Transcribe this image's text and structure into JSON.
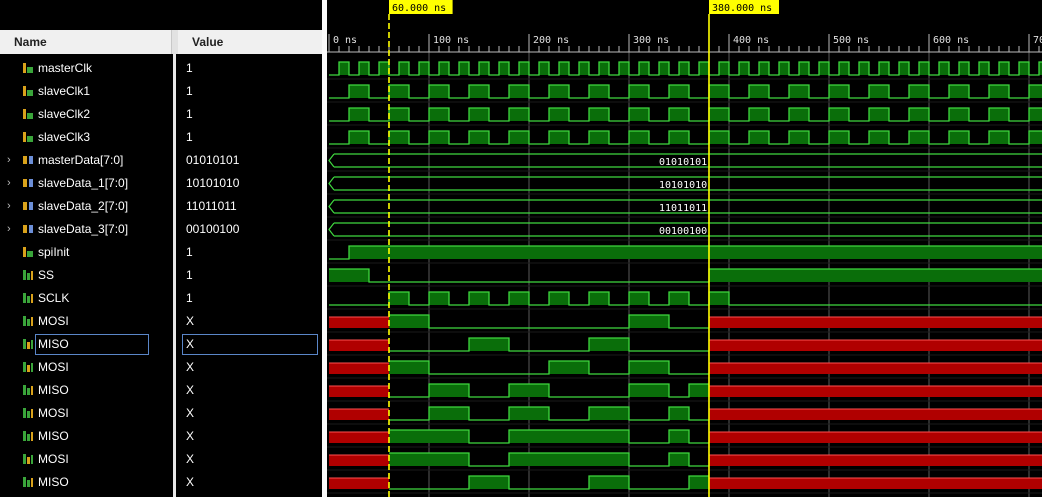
{
  "columns": {
    "name": "Name",
    "value": "Value"
  },
  "signals": [
    {
      "name": "masterClk",
      "value": "1",
      "kind": "bit",
      "icon": "bit-signal-icon",
      "expandable": false,
      "selected": false
    },
    {
      "name": "slaveClk1",
      "value": "1",
      "kind": "bit",
      "icon": "bit-signal-icon",
      "expandable": false,
      "selected": false
    },
    {
      "name": "slaveClk2",
      "value": "1",
      "kind": "bit",
      "icon": "bit-signal-icon",
      "expandable": false,
      "selected": false
    },
    {
      "name": "slaveClk3",
      "value": "1",
      "kind": "bit",
      "icon": "bit-signal-icon",
      "expandable": false,
      "selected": false
    },
    {
      "name": "masterData[7:0]",
      "value": "01010101",
      "kind": "bus",
      "icon": "bus-signal-icon",
      "expandable": true,
      "selected": false
    },
    {
      "name": "slaveData_1[7:0]",
      "value": "10101010",
      "kind": "bus",
      "icon": "bus-signal-icon",
      "expandable": true,
      "selected": false
    },
    {
      "name": "slaveData_2[7:0]",
      "value": "11011011",
      "kind": "bus",
      "icon": "bus-signal-icon",
      "expandable": true,
      "selected": false
    },
    {
      "name": "slaveData_3[7:0]",
      "value": "00100100",
      "kind": "bus",
      "icon": "bus-signal-icon",
      "expandable": true,
      "selected": false
    },
    {
      "name": "spiInit",
      "value": "1",
      "kind": "bit",
      "icon": "bit-signal-icon",
      "expandable": false,
      "selected": false
    },
    {
      "name": "SS",
      "value": "1",
      "kind": "bit",
      "icon": "net-signal-icon",
      "expandable": false,
      "selected": false
    },
    {
      "name": "SCLK",
      "value": "1",
      "kind": "bit",
      "icon": "net-signal-icon",
      "expandable": false,
      "selected": false
    },
    {
      "name": "MOSI",
      "value": "X",
      "kind": "bit",
      "icon": "net-signal-icon",
      "expandable": false,
      "selected": false
    },
    {
      "name": "MISO",
      "value": "X",
      "kind": "bit",
      "icon": "net-out-signal-icon",
      "expandable": false,
      "selected": true
    },
    {
      "name": "MOSI",
      "value": "X",
      "kind": "bit",
      "icon": "net-out-signal-icon",
      "expandable": false,
      "selected": false
    },
    {
      "name": "MISO",
      "value": "X",
      "kind": "bit",
      "icon": "net-signal-icon",
      "expandable": false,
      "selected": false
    },
    {
      "name": "MOSI",
      "value": "X",
      "kind": "bit",
      "icon": "net-signal-icon",
      "expandable": false,
      "selected": false
    },
    {
      "name": "MISO",
      "value": "X",
      "kind": "bit",
      "icon": "net-signal-icon",
      "expandable": false,
      "selected": false
    },
    {
      "name": "MOSI",
      "value": "X",
      "kind": "bit",
      "icon": "net-out-signal-icon",
      "expandable": false,
      "selected": false
    },
    {
      "name": "MISO",
      "value": "X",
      "kind": "bit",
      "icon": "net-signal-icon",
      "expandable": false,
      "selected": false
    }
  ],
  "timeline": {
    "start_ns": 0,
    "end_ns": 700,
    "tick_labels": [
      "0 ns",
      "100 ns",
      "200 ns",
      "300 ns",
      "400 ns",
      "500 ns",
      "600 ns",
      "70"
    ],
    "markers": [
      {
        "label": "60.000 ns",
        "time_ns": 60,
        "style": "dashed"
      },
      {
        "label": "380.000 ns",
        "time_ns": 380,
        "style": "solid"
      }
    ]
  },
  "waveforms": [
    {
      "type": "clock",
      "half_period_ns": 10
    },
    {
      "type": "clock",
      "half_period_ns": 20
    },
    {
      "type": "clock",
      "half_period_ns": 20
    },
    {
      "type": "clock",
      "half_period_ns": 20
    },
    {
      "type": "bus",
      "label": "01010101",
      "change_ns": 0
    },
    {
      "type": "bus",
      "label": "10101010",
      "change_ns": 0
    },
    {
      "type": "bus",
      "label": "11011011",
      "change_ns": 0
    },
    {
      "type": "bus",
      "label": "00100100",
      "change_ns": 0
    },
    {
      "type": "edges",
      "initial": 0,
      "edges_ns": [
        20
      ]
    },
    {
      "type": "edges",
      "initial": 1,
      "edges_ns": [
        40,
        380
      ]
    },
    {
      "type": "edges",
      "initial": 0,
      "edges_ns": [
        60,
        80,
        100,
        120,
        140,
        160,
        180,
        200,
        220,
        240,
        260,
        280,
        300,
        320,
        340,
        360,
        380,
        400
      ]
    },
    {
      "type": "xdata",
      "x_until_ns": 60,
      "edges_ns": [
        60,
        100,
        300,
        340
      ],
      "x_from_ns": 380,
      "initial": 1
    },
    {
      "type": "xdata",
      "x_until_ns": 60,
      "edges_ns": [
        140,
        180,
        260,
        300
      ],
      "x_from_ns": 380,
      "initial": 0
    },
    {
      "type": "xdata",
      "x_until_ns": 60,
      "edges_ns": [
        60,
        100,
        220,
        260,
        300,
        340
      ],
      "x_from_ns": 380,
      "initial": 1
    },
    {
      "type": "xdata",
      "x_until_ns": 60,
      "edges_ns": [
        100,
        140,
        180,
        220,
        300,
        340,
        360
      ],
      "x_from_ns": 380,
      "initial": 0
    },
    {
      "type": "xdata",
      "x_until_ns": 60,
      "edges_ns": [
        100,
        140,
        180,
        220,
        260,
        300,
        340,
        360
      ],
      "x_from_ns": 380,
      "initial": 0
    },
    {
      "type": "xdata",
      "x_until_ns": 60,
      "edges_ns": [
        140,
        180,
        300,
        340,
        360
      ],
      "x_from_ns": 380,
      "initial": 1
    },
    {
      "type": "xdata",
      "x_until_ns": 60,
      "edges_ns": [
        140,
        180,
        300,
        340,
        360
      ],
      "x_from_ns": 380,
      "initial": 1
    },
    {
      "type": "xdata",
      "x_until_ns": 60,
      "edges_ns": [
        140,
        180,
        260,
        300,
        360
      ],
      "x_from_ns": 380,
      "initial": 0
    }
  ],
  "colors": {
    "wave_high_fill": "#0a6e0a",
    "wave_line": "#3fd83f",
    "x_state": "#b00000",
    "x_state_line": "#ff5050",
    "marker": "#ffff00",
    "grid": "#5a5a5a"
  }
}
